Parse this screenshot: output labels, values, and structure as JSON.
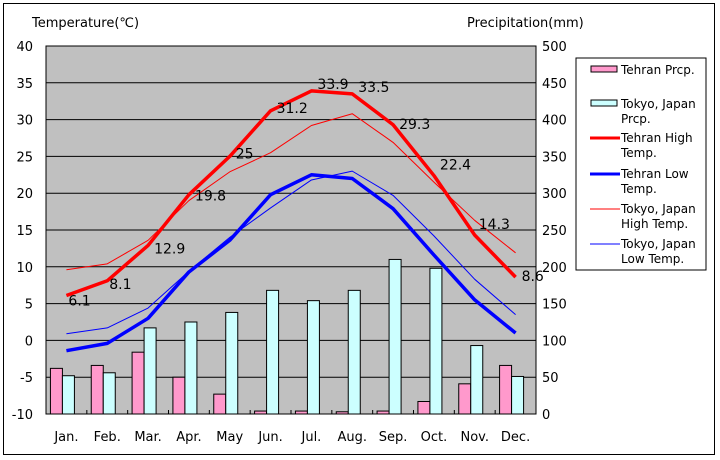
{
  "chart_data": {
    "type": "bar+line",
    "left_axis_title": "Temperature(℃)",
    "right_axis_title": "Precipitation(mm)",
    "categories": [
      "Jan.",
      "Feb.",
      "Mar.",
      "Apr.",
      "May",
      "Jun.",
      "Jul.",
      "Aug.",
      "Sep.",
      "Oct.",
      "Nov.",
      "Dec."
    ],
    "y_left": {
      "min": -10,
      "max": 40,
      "step": 5,
      "ticks": [
        "-10",
        "-5",
        "0",
        "5",
        "10",
        "15",
        "20",
        "25",
        "30",
        "35",
        "40"
      ]
    },
    "y_right": {
      "min": 0,
      "max": 500,
      "step": 50,
      "ticks": [
        "0",
        "50",
        "100",
        "150",
        "200",
        "250",
        "300",
        "350",
        "400",
        "450",
        "500"
      ]
    },
    "grid": true,
    "legend_position": "right",
    "bar_series": [
      {
        "name": "Tehran Prcp.",
        "color": "#ff99cc",
        "values": [
          62,
          66,
          84,
          50,
          27,
          4,
          4,
          3,
          4,
          17,
          41,
          66
        ]
      },
      {
        "name": "Tokyo, Japan Prcp.",
        "color": "#ccffff",
        "values": [
          52,
          56,
          117,
          125,
          138,
          168,
          154,
          168,
          210,
          198,
          93,
          51
        ]
      }
    ],
    "line_series": [
      {
        "name": "Tehran High Temp.",
        "color": "#ff0000",
        "width": "thick",
        "values": [
          6.1,
          8.1,
          12.9,
          19.8,
          25,
          31.2,
          33.9,
          33.5,
          29.3,
          22.4,
          14.3,
          8.6
        ],
        "labels": [
          "6.1",
          "8.1",
          "12.9",
          "19.8",
          "25",
          "31.2",
          "33.9",
          "33.5",
          "29.3",
          "22.4",
          "14.3",
          "8.6"
        ]
      },
      {
        "name": "Tehran Low Temp.",
        "color": "#0000ff",
        "width": "thick",
        "values": [
          -1.4,
          -0.4,
          3.0,
          9.3,
          13.6,
          19.8,
          22.5,
          22.0,
          17.9,
          11.6,
          5.5,
          1.0
        ]
      },
      {
        "name": "Tokyo, Japan High Temp.",
        "color": "#ff0000",
        "width": "thin",
        "values": [
          9.6,
          10.4,
          13.6,
          19.0,
          22.9,
          25.5,
          29.2,
          30.8,
          26.9,
          21.5,
          16.3,
          11.9
        ]
      },
      {
        "name": "Tokyo, Japan Low Temp.",
        "color": "#0000ff",
        "width": "thin",
        "values": [
          0.9,
          1.7,
          4.4,
          9.4,
          14.0,
          18.0,
          21.8,
          23.0,
          19.7,
          14.2,
          8.3,
          3.5
        ]
      }
    ],
    "legend": [
      {
        "lines": [
          "Tehran Prcp."
        ],
        "kind": "bar",
        "color": "#ff99cc"
      },
      {
        "lines": [
          "Tokyo, Japan",
          "Prcp."
        ],
        "kind": "bar",
        "color": "#ccffff"
      },
      {
        "lines": [
          "Tehran High",
          "Temp."
        ],
        "kind": "thick-line",
        "color": "#ff0000"
      },
      {
        "lines": [
          "Tehran Low",
          "Temp."
        ],
        "kind": "thick-line",
        "color": "#0000ff"
      },
      {
        "lines": [
          "Tokyo, Japan",
          "High Temp."
        ],
        "kind": "thin-line",
        "color": "#ff0000"
      },
      {
        "lines": [
          "Tokyo, Japan",
          "Low Temp."
        ],
        "kind": "thin-line",
        "color": "#0000ff"
      }
    ],
    "plot_background": "#c0c0c0"
  }
}
